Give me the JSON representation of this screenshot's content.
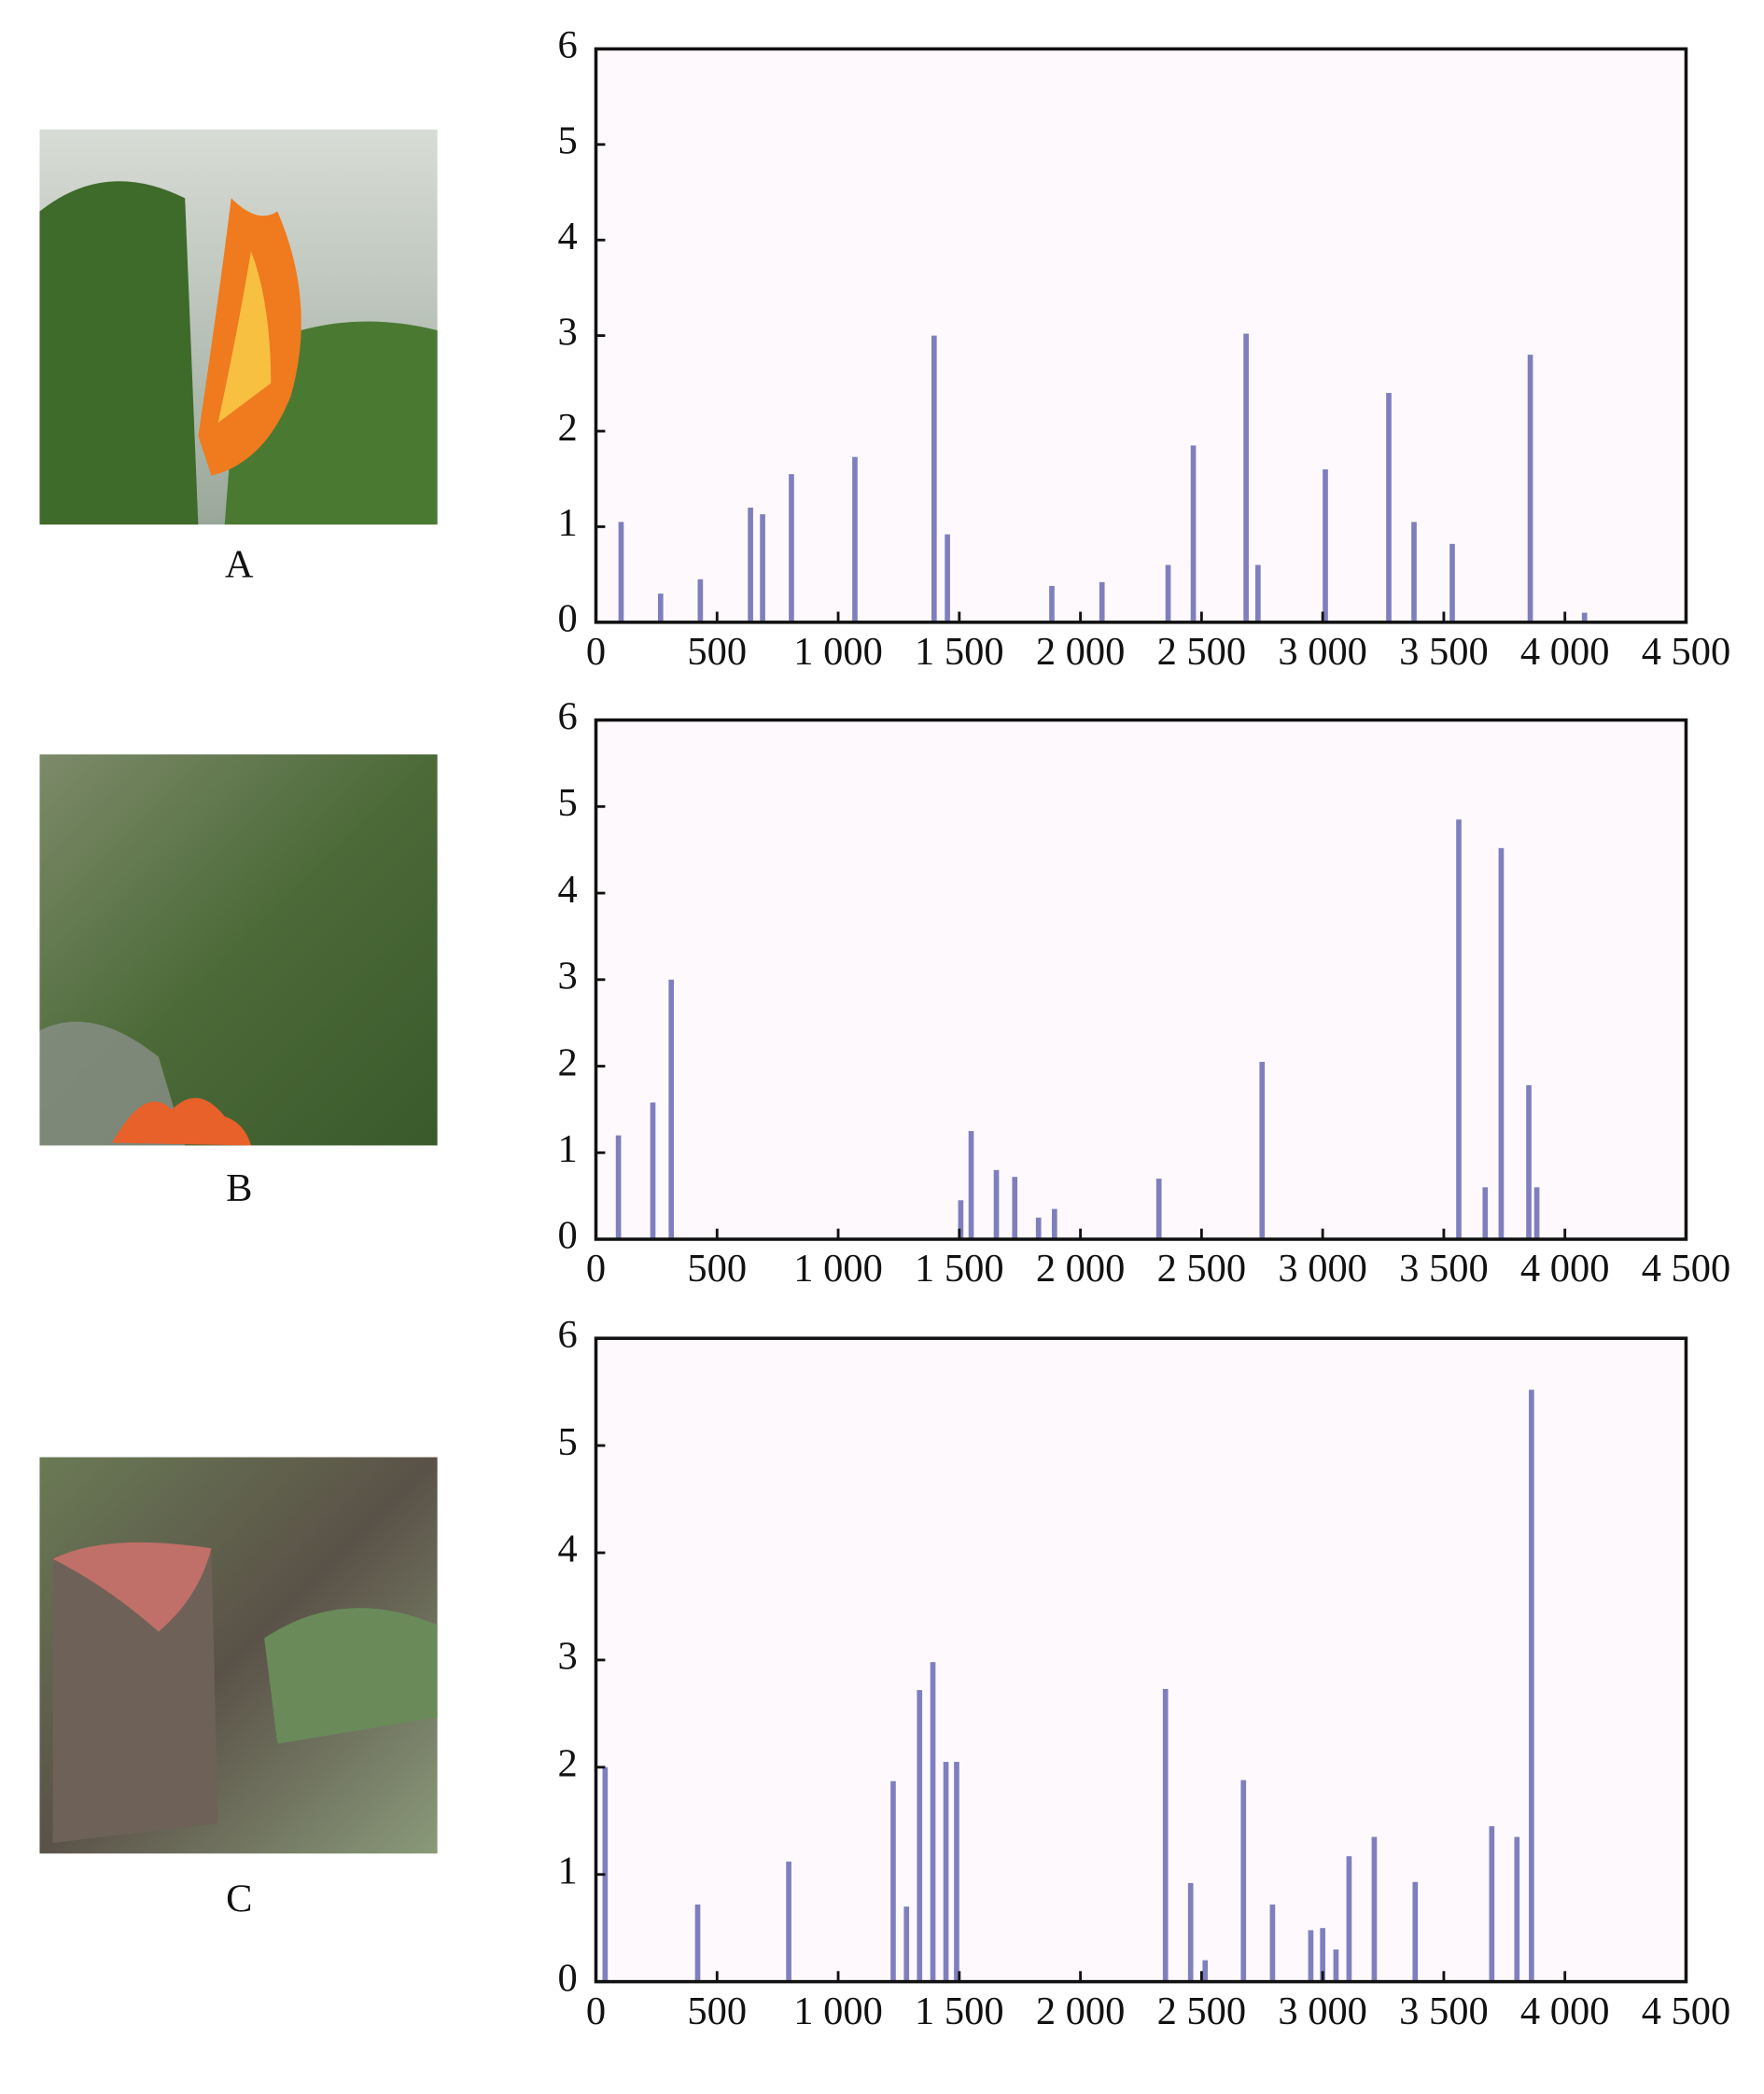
{
  "panel_labels": [
    "A",
    "B",
    "C"
  ],
  "chart_data": [
    {
      "type": "bar",
      "color": "#7f7fbf",
      "x": [
        104,
        267,
        431,
        638,
        688,
        807,
        1069,
        1396,
        1451,
        1882,
        2089,
        2362,
        2466,
        2684,
        2733,
        3011,
        3273,
        3377,
        3535,
        3857,
        4081
      ],
      "values": [
        1.05,
        0.3,
        0.45,
        1.2,
        1.13,
        1.55,
        1.73,
        3.0,
        0.92,
        0.38,
        0.42,
        0.6,
        1.85,
        3.02,
        0.6,
        1.6,
        2.4,
        1.05,
        0.82,
        2.8,
        0.1
      ],
      "xlim": [
        0,
        4500
      ],
      "ylim": [
        0,
        6
      ],
      "xticks": [
        0,
        500,
        {
          "value": 1000,
          "label": "1 000"
        },
        {
          "value": 1500,
          "label": "1 500"
        },
        {
          "value": 2000,
          "label": "2 000"
        },
        {
          "value": 2500,
          "label": "2 500"
        },
        {
          "value": 3000,
          "label": "3 000"
        },
        {
          "value": 3500,
          "label": "3 500"
        },
        {
          "value": 4000,
          "label": "4 000"
        },
        {
          "value": 4500,
          "label": "4 500"
        }
      ],
      "yticks": [
        0,
        1,
        2,
        3,
        4,
        5,
        6
      ]
    },
    {
      "type": "bar",
      "color": "#7f7fbf",
      "x": [
        93,
        235,
        311,
        1506,
        1549,
        1653,
        1729,
        1827,
        1893,
        2324,
        2750,
        3562,
        3671,
        3737,
        3851,
        3884
      ],
      "values": [
        1.2,
        1.58,
        3.0,
        0.45,
        1.25,
        0.8,
        0.72,
        0.25,
        0.35,
        0.7,
        2.05,
        4.85,
        0.6,
        4.52,
        1.78,
        0.6
      ],
      "xlim": [
        0,
        4500
      ],
      "ylim": [
        0,
        6
      ],
      "xticks": [
        0,
        500,
        {
          "value": 1000,
          "label": "1 000"
        },
        {
          "value": 1500,
          "label": "1 500"
        },
        {
          "value": 2000,
          "label": "2 000"
        },
        {
          "value": 2500,
          "label": "2 500"
        },
        {
          "value": 3000,
          "label": "3 000"
        },
        {
          "value": 3500,
          "label": "3 500"
        },
        {
          "value": 4000,
          "label": "4 000"
        },
        {
          "value": 4500,
          "label": "4 500"
        }
      ],
      "yticks": [
        0,
        1,
        2,
        3,
        4,
        5,
        6
      ]
    },
    {
      "type": "bar",
      "color": "#7f7fbf",
      "x": [
        38,
        420,
        796,
        1227,
        1282,
        1336,
        1391,
        1445,
        1489,
        2351,
        2455,
        2515,
        2673,
        2793,
        2951,
        3000,
        3055,
        3109,
        3213,
        3382,
        3698,
        3802,
        3862
      ],
      "values": [
        2.0,
        0.72,
        1.12,
        1.87,
        0.7,
        2.72,
        2.98,
        2.05,
        2.05,
        2.73,
        0.92,
        0.2,
        1.88,
        0.72,
        0.48,
        0.5,
        0.3,
        1.17,
        1.35,
        0.93,
        1.45,
        1.35,
        5.52
      ],
      "xlim": [
        0,
        4500
      ],
      "ylim": [
        0,
        6
      ],
      "xticks": [
        0,
        500,
        {
          "value": 1000,
          "label": "1 000"
        },
        {
          "value": 1500,
          "label": "1 500"
        },
        {
          "value": 2000,
          "label": "2 000"
        },
        {
          "value": 2500,
          "label": "2 500"
        },
        {
          "value": 3000,
          "label": "3 000"
        },
        {
          "value": 3500,
          "label": "3 500"
        },
        {
          "value": 4000,
          "label": "4 000"
        },
        {
          "value": 4500,
          "label": "4 500"
        }
      ],
      "yticks": [
        0,
        1,
        2,
        3,
        4,
        5,
        6
      ]
    }
  ]
}
